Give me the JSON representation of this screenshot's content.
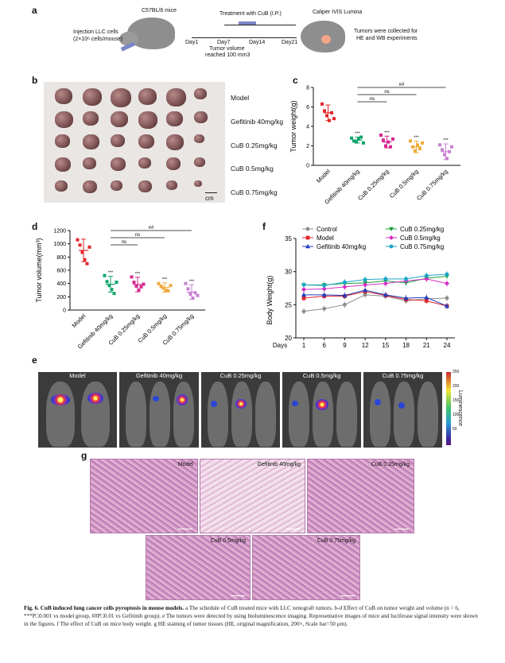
{
  "panel_a": {
    "letter": "a",
    "strain": "C57BL/6 mice",
    "injection": "Injection LLC cells",
    "dose": "(2×10⁶ cells/mouse)",
    "treatment": "Treatment with CuB (I.P.)",
    "days": [
      "Day1",
      "Day7",
      "Day14",
      "Day21"
    ],
    "volume_note_1": "Tumor volume",
    "volume_note_2": "reached 100 mm3",
    "instrument": "Caliper IVIS Lumina",
    "collect_1": "Tumors were collected for",
    "collect_2": "HE and WB experiments"
  },
  "panel_b": {
    "letter": "b",
    "rows": [
      "Model",
      "Gefitinib 40mg/kg",
      "CuB 0.25mg/kg",
      "CuB 0.5mg/kg",
      "CuB 0.75mg/kg"
    ],
    "scale": "cm"
  },
  "panel_c": {
    "letter": "c",
    "chart_data": {
      "type": "scatter",
      "ylabel": "Tumor weight(g)",
      "ylim": [
        0,
        8
      ],
      "yticks": [
        0,
        2,
        4,
        6,
        8
      ],
      "categories": [
        "Model",
        "Gefitinib 40mg/kg",
        "CuB 0.25mg/kg",
        "CuB 0.5mg/kg",
        "CuB 0.75mg/kg"
      ],
      "colors": [
        "#e3262b",
        "#12a56b",
        "#d6288f",
        "#f2a93b",
        "#c77fd0"
      ],
      "means": [
        5.4,
        2.6,
        2.4,
        1.9,
        1.4
      ],
      "sd": [
        0.8,
        0.3,
        0.6,
        0.6,
        0.8
      ],
      "points": [
        [
          6.3,
          5.6,
          5.1,
          4.6,
          5.4,
          4.8
        ],
        [
          2.8,
          2.5,
          2.4,
          2.7,
          2.9,
          2.3
        ],
        [
          3.1,
          2.6,
          2.0,
          2.4,
          1.9,
          2.7
        ],
        [
          2.5,
          1.9,
          1.5,
          2.1,
          1.7,
          2.3
        ],
        [
          2.1,
          1.6,
          1.1,
          0.7,
          1.4,
          1.9
        ]
      ],
      "stars": [
        "",
        "***",
        "***",
        "***",
        "***"
      ],
      "brackets": [
        "ns",
        "ns",
        "##"
      ]
    }
  },
  "panel_d": {
    "letter": "d",
    "chart_data": {
      "type": "scatter",
      "ylabel": "Tumor volume(mm³)",
      "ylim": [
        0,
        1200
      ],
      "yticks": [
        0,
        200,
        400,
        600,
        800,
        1000,
        1200
      ],
      "categories": [
        "Model",
        "Gefitinib 40mg/kg",
        "CuB 0.25mg/kg",
        "CuB 0.5mg/kg",
        "CuB 0.75mg/kg"
      ],
      "colors": [
        "#e3262b",
        "#12a56b",
        "#d6288f",
        "#f2a93b",
        "#c77fd0"
      ],
      "means": [
        900,
        390,
        385,
        340,
        270
      ],
      "sd": [
        170,
        120,
        110,
        70,
        110
      ],
      "points": [
        [
          1060,
          980,
          870,
          760,
          700,
          950
        ],
        [
          520,
          430,
          370,
          310,
          250,
          420
        ],
        [
          500,
          420,
          360,
          300,
          350,
          390
        ],
        [
          400,
          360,
          330,
          300,
          290,
          370
        ],
        [
          400,
          320,
          240,
          180,
          260,
          220
        ]
      ],
      "stars": [
        "",
        "***",
        "***",
        "***",
        "***"
      ],
      "brackets": [
        "ns",
        "ns",
        "##"
      ]
    }
  },
  "panel_f": {
    "letter": "f",
    "chart_data": {
      "type": "line",
      "ylabel": "Body Weight(g)",
      "xlabel": "Days",
      "x": [
        1,
        6,
        9,
        12,
        15,
        18,
        21,
        24
      ],
      "ylim": [
        20,
        35
      ],
      "yticks": [
        20,
        25,
        30,
        35
      ],
      "series": [
        {
          "name": "Control",
          "color": "#8c8c8c",
          "marker": "circle",
          "values": [
            24.0,
            24.4,
            25.0,
            26.5,
            26.3,
            25.6,
            25.9,
            26.0
          ]
        },
        {
          "name": "Model",
          "color": "#e3262b",
          "marker": "square",
          "values": [
            26.0,
            26.3,
            26.3,
            27.0,
            26.4,
            25.8,
            25.6,
            24.8
          ]
        },
        {
          "name": "Gefitinib 40mg/kg",
          "color": "#1f3fbf",
          "marker": "triangle-up",
          "values": [
            26.5,
            26.5,
            26.4,
            27.2,
            26.5,
            26.0,
            26.1,
            24.8
          ]
        },
        {
          "name": "CuB 0.25mg/kg",
          "color": "#18a03c",
          "marker": "triangle-down",
          "values": [
            28.0,
            28.0,
            28.2,
            28.3,
            28.6,
            28.3,
            29.0,
            29.3
          ]
        },
        {
          "name": "CuB 0.5mg/kg",
          "color": "#d42fc4",
          "marker": "diamond",
          "values": [
            27.3,
            27.4,
            27.7,
            28.0,
            28.2,
            28.6,
            28.9,
            28.2
          ]
        },
        {
          "name": "CuB 0.75mg/kg",
          "color": "#1aa6c8",
          "marker": "circle",
          "values": [
            28.0,
            27.9,
            28.4,
            28.8,
            28.9,
            28.9,
            29.4,
            29.6
          ]
        }
      ]
    }
  },
  "panel_e": {
    "letter": "e",
    "groups": [
      "Model",
      "Gefitinib 40mg/kg",
      "CuB 0.25mg/kg",
      "CuB 0.5mg/kg",
      "CuB 0.75mg/kg"
    ],
    "colorbar_title": "Luminescence",
    "colorbar_ticks": [
      "250",
      "200",
      "150",
      "100",
      "50"
    ]
  },
  "panel_g": {
    "letter": "g",
    "labels": [
      "Model",
      "Gefitinib 40mg/kg",
      "CuB 0.25mg/kg",
      "CuB 0.5mg/kg",
      "CuB 0.75mg/kg"
    ]
  },
  "caption": {
    "title": "Fig. 6.  CuB induced lung cancer cells pyroptosis in mouse models.",
    "body": " a The schedule of CuB treated mice with LLC xenograft tumors. b-d Effect of CuB on tumor weight and volume (n = 6, ***P□0.001 vs model group, ##P□0.01 vs Gefitinib group). e The tumors were detected by using bioluminescence imaging. Representative images of mice and luciferase signal intensity were shown in the figures. f The effect of CuB on mice body weight. g HE staining of tumor tissues (HE, original magnification, 200×, Scale bar=50 μm)."
  }
}
